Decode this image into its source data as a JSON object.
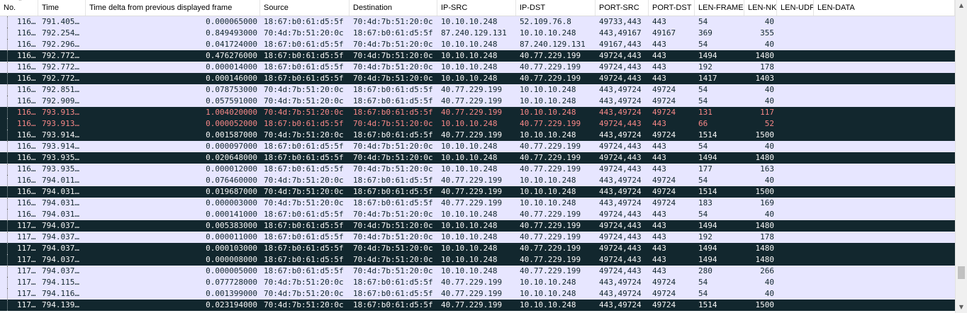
{
  "columns": [
    {
      "key": "no",
      "label": "No."
    },
    {
      "key": "time",
      "label": "Time"
    },
    {
      "key": "delta",
      "label": "Time delta from previous displayed frame"
    },
    {
      "key": "src",
      "label": "Source"
    },
    {
      "key": "dst",
      "label": "Destination"
    },
    {
      "key": "ipsrc",
      "label": "IP-SRC"
    },
    {
      "key": "ipdst",
      "label": "IP-DST"
    },
    {
      "key": "portsrc",
      "label": "PORT-SRC"
    },
    {
      "key": "portdst",
      "label": "PORT-DST"
    },
    {
      "key": "lenframe",
      "label": "LEN-FRAME"
    },
    {
      "key": "lennk",
      "label": "LEN-NK"
    },
    {
      "key": "lenudp",
      "label": "LEN-UDP"
    },
    {
      "key": "lendata",
      "label": "LEN-DATA"
    }
  ],
  "sort_icon": "sort-up-arrow-icon",
  "colors": {
    "light_row": "#e7e6ff",
    "dark_row": "#12272e",
    "dark_text": "#f7f7f7",
    "error_text": "#f78787",
    "light_text": "#12272e"
  },
  "rows": [
    {
      "style": "light",
      "no": "116…",
      "time": "791.405…",
      "delta": "0.000065000",
      "src": "18:67:b0:61:d5:5f",
      "dst": "70:4d:7b:51:20:0c",
      "ipsrc": "10.10.10.248",
      "ipdst": "52.109.76.8",
      "portsrc": "49733,443",
      "portdst": "443",
      "lenframe": "54",
      "lennk": "40",
      "lenudp": "",
      "lendata": ""
    },
    {
      "style": "light",
      "no": "116…",
      "time": "792.254…",
      "delta": "0.849493000",
      "src": "70:4d:7b:51:20:0c",
      "dst": "18:67:b0:61:d5:5f",
      "ipsrc": "87.240.129.131",
      "ipdst": "10.10.10.248",
      "portsrc": "443,49167",
      "portdst": "49167",
      "lenframe": "369",
      "lennk": "355",
      "lenudp": "",
      "lendata": ""
    },
    {
      "style": "light",
      "no": "116…",
      "time": "792.296…",
      "delta": "0.041724000",
      "src": "18:67:b0:61:d5:5f",
      "dst": "70:4d:7b:51:20:0c",
      "ipsrc": "10.10.10.248",
      "ipdst": "87.240.129.131",
      "portsrc": "49167,443",
      "portdst": "443",
      "lenframe": "54",
      "lennk": "40",
      "lenudp": "",
      "lendata": ""
    },
    {
      "style": "dark",
      "no": "116…",
      "time": "792.772…",
      "delta": "0.476276000",
      "src": "18:67:b0:61:d5:5f",
      "dst": "70:4d:7b:51:20:0c",
      "ipsrc": "10.10.10.248",
      "ipdst": "40.77.229.199",
      "portsrc": "49724,443",
      "portdst": "443",
      "lenframe": "1494",
      "lennk": "1480",
      "lenudp": "",
      "lendata": ""
    },
    {
      "style": "light",
      "no": "116…",
      "time": "792.772…",
      "delta": "0.000014000",
      "src": "18:67:b0:61:d5:5f",
      "dst": "70:4d:7b:51:20:0c",
      "ipsrc": "10.10.10.248",
      "ipdst": "40.77.229.199",
      "portsrc": "49724,443",
      "portdst": "443",
      "lenframe": "192",
      "lennk": "178",
      "lenudp": "",
      "lendata": ""
    },
    {
      "style": "dark",
      "no": "116…",
      "time": "792.772…",
      "delta": "0.000146000",
      "src": "18:67:b0:61:d5:5f",
      "dst": "70:4d:7b:51:20:0c",
      "ipsrc": "10.10.10.248",
      "ipdst": "40.77.229.199",
      "portsrc": "49724,443",
      "portdst": "443",
      "lenframe": "1417",
      "lennk": "1403",
      "lenudp": "",
      "lendata": ""
    },
    {
      "style": "light",
      "no": "116…",
      "time": "792.851…",
      "delta": "0.078753000",
      "src": "70:4d:7b:51:20:0c",
      "dst": "18:67:b0:61:d5:5f",
      "ipsrc": "40.77.229.199",
      "ipdst": "10.10.10.248",
      "portsrc": "443,49724",
      "portdst": "49724",
      "lenframe": "54",
      "lennk": "40",
      "lenudp": "",
      "lendata": ""
    },
    {
      "style": "light",
      "no": "116…",
      "time": "792.909…",
      "delta": "0.057591000",
      "src": "70:4d:7b:51:20:0c",
      "dst": "18:67:b0:61:d5:5f",
      "ipsrc": "40.77.229.199",
      "ipdst": "10.10.10.248",
      "portsrc": "443,49724",
      "portdst": "49724",
      "lenframe": "54",
      "lennk": "40",
      "lenudp": "",
      "lendata": ""
    },
    {
      "style": "err",
      "no": "116…",
      "time": "793.913…",
      "delta": "1.004020000",
      "src": "70:4d:7b:51:20:0c",
      "dst": "18:67:b0:61:d5:5f",
      "ipsrc": "40.77.229.199",
      "ipdst": "10.10.10.248",
      "portsrc": "443,49724",
      "portdst": "49724",
      "lenframe": "131",
      "lennk": "117",
      "lenudp": "",
      "lendata": ""
    },
    {
      "style": "err",
      "no": "116…",
      "time": "793.913…",
      "delta": "0.000052000",
      "src": "18:67:b0:61:d5:5f",
      "dst": "70:4d:7b:51:20:0c",
      "ipsrc": "10.10.10.248",
      "ipdst": "40.77.229.199",
      "portsrc": "49724,443",
      "portdst": "443",
      "lenframe": "66",
      "lennk": "52",
      "lenudp": "",
      "lendata": ""
    },
    {
      "style": "dark",
      "no": "116…",
      "time": "793.914…",
      "delta": "0.001587000",
      "src": "70:4d:7b:51:20:0c",
      "dst": "18:67:b0:61:d5:5f",
      "ipsrc": "40.77.229.199",
      "ipdst": "10.10.10.248",
      "portsrc": "443,49724",
      "portdst": "49724",
      "lenframe": "1514",
      "lennk": "1500",
      "lenudp": "",
      "lendata": ""
    },
    {
      "style": "light",
      "no": "116…",
      "time": "793.914…",
      "delta": "0.000097000",
      "src": "18:67:b0:61:d5:5f",
      "dst": "70:4d:7b:51:20:0c",
      "ipsrc": "10.10.10.248",
      "ipdst": "40.77.229.199",
      "portsrc": "49724,443",
      "portdst": "443",
      "lenframe": "54",
      "lennk": "40",
      "lenudp": "",
      "lendata": ""
    },
    {
      "style": "dark",
      "no": "116…",
      "time": "793.935…",
      "delta": "0.020648000",
      "src": "18:67:b0:61:d5:5f",
      "dst": "70:4d:7b:51:20:0c",
      "ipsrc": "10.10.10.248",
      "ipdst": "40.77.229.199",
      "portsrc": "49724,443",
      "portdst": "443",
      "lenframe": "1494",
      "lennk": "1480",
      "lenudp": "",
      "lendata": ""
    },
    {
      "style": "light",
      "no": "116…",
      "time": "793.935…",
      "delta": "0.000012000",
      "src": "18:67:b0:61:d5:5f",
      "dst": "70:4d:7b:51:20:0c",
      "ipsrc": "10.10.10.248",
      "ipdst": "40.77.229.199",
      "portsrc": "49724,443",
      "portdst": "443",
      "lenframe": "177",
      "lennk": "163",
      "lenudp": "",
      "lendata": ""
    },
    {
      "style": "light",
      "no": "116…",
      "time": "794.011…",
      "delta": "0.076460000",
      "src": "70:4d:7b:51:20:0c",
      "dst": "18:67:b0:61:d5:5f",
      "ipsrc": "40.77.229.199",
      "ipdst": "10.10.10.248",
      "portsrc": "443,49724",
      "portdst": "49724",
      "lenframe": "54",
      "lennk": "40",
      "lenudp": "",
      "lendata": ""
    },
    {
      "style": "dark",
      "no": "116…",
      "time": "794.031…",
      "delta": "0.019687000",
      "src": "70:4d:7b:51:20:0c",
      "dst": "18:67:b0:61:d5:5f",
      "ipsrc": "40.77.229.199",
      "ipdst": "10.10.10.248",
      "portsrc": "443,49724",
      "portdst": "49724",
      "lenframe": "1514",
      "lennk": "1500",
      "lenudp": "",
      "lendata": ""
    },
    {
      "style": "light",
      "no": "116…",
      "time": "794.031…",
      "delta": "0.000003000",
      "src": "70:4d:7b:51:20:0c",
      "dst": "18:67:b0:61:d5:5f",
      "ipsrc": "40.77.229.199",
      "ipdst": "10.10.10.248",
      "portsrc": "443,49724",
      "portdst": "49724",
      "lenframe": "183",
      "lennk": "169",
      "lenudp": "",
      "lendata": ""
    },
    {
      "style": "light",
      "no": "116…",
      "time": "794.031…",
      "delta": "0.000141000",
      "src": "18:67:b0:61:d5:5f",
      "dst": "70:4d:7b:51:20:0c",
      "ipsrc": "10.10.10.248",
      "ipdst": "40.77.229.199",
      "portsrc": "49724,443",
      "portdst": "443",
      "lenframe": "54",
      "lennk": "40",
      "lenudp": "",
      "lendata": ""
    },
    {
      "style": "dark",
      "no": "117…",
      "time": "794.037…",
      "delta": "0.005383000",
      "src": "18:67:b0:61:d5:5f",
      "dst": "70:4d:7b:51:20:0c",
      "ipsrc": "10.10.10.248",
      "ipdst": "40.77.229.199",
      "portsrc": "49724,443",
      "portdst": "443",
      "lenframe": "1494",
      "lennk": "1480",
      "lenudp": "",
      "lendata": ""
    },
    {
      "style": "light",
      "no": "117…",
      "time": "794.037…",
      "delta": "0.000011000",
      "src": "18:67:b0:61:d5:5f",
      "dst": "70:4d:7b:51:20:0c",
      "ipsrc": "10.10.10.248",
      "ipdst": "40.77.229.199",
      "portsrc": "49724,443",
      "portdst": "443",
      "lenframe": "192",
      "lennk": "178",
      "lenudp": "",
      "lendata": ""
    },
    {
      "style": "dark",
      "no": "117…",
      "time": "794.037…",
      "delta": "0.000103000",
      "src": "18:67:b0:61:d5:5f",
      "dst": "70:4d:7b:51:20:0c",
      "ipsrc": "10.10.10.248",
      "ipdst": "40.77.229.199",
      "portsrc": "49724,443",
      "portdst": "443",
      "lenframe": "1494",
      "lennk": "1480",
      "lenudp": "",
      "lendata": ""
    },
    {
      "style": "dark",
      "no": "117…",
      "time": "794.037…",
      "delta": "0.000008000",
      "src": "18:67:b0:61:d5:5f",
      "dst": "70:4d:7b:51:20:0c",
      "ipsrc": "10.10.10.248",
      "ipdst": "40.77.229.199",
      "portsrc": "49724,443",
      "portdst": "443",
      "lenframe": "1494",
      "lennk": "1480",
      "lenudp": "",
      "lendata": ""
    },
    {
      "style": "light",
      "no": "117…",
      "time": "794.037…",
      "delta": "0.000005000",
      "src": "18:67:b0:61:d5:5f",
      "dst": "70:4d:7b:51:20:0c",
      "ipsrc": "10.10.10.248",
      "ipdst": "40.77.229.199",
      "portsrc": "49724,443",
      "portdst": "443",
      "lenframe": "280",
      "lennk": "266",
      "lenudp": "",
      "lendata": ""
    },
    {
      "style": "light",
      "no": "117…",
      "time": "794.115…",
      "delta": "0.077728000",
      "src": "70:4d:7b:51:20:0c",
      "dst": "18:67:b0:61:d5:5f",
      "ipsrc": "40.77.229.199",
      "ipdst": "10.10.10.248",
      "portsrc": "443,49724",
      "portdst": "49724",
      "lenframe": "54",
      "lennk": "40",
      "lenudp": "",
      "lendata": ""
    },
    {
      "style": "light",
      "no": "117…",
      "time": "794.116…",
      "delta": "0.001399000",
      "src": "70:4d:7b:51:20:0c",
      "dst": "18:67:b0:61:d5:5f",
      "ipsrc": "40.77.229.199",
      "ipdst": "10.10.10.248",
      "portsrc": "443,49724",
      "portdst": "49724",
      "lenframe": "54",
      "lennk": "40",
      "lenudp": "",
      "lendata": ""
    },
    {
      "style": "dark",
      "no": "117…",
      "time": "794.139…",
      "delta": "0.023194000",
      "src": "70:4d:7b:51:20:0c",
      "dst": "18:67:b0:61:d5:5f",
      "ipsrc": "40.77.229.199",
      "ipdst": "10.10.10.248",
      "portsrc": "443,49724",
      "portdst": "49724",
      "lenframe": "1514",
      "lennk": "1500",
      "lenudp": "",
      "lendata": ""
    }
  ]
}
